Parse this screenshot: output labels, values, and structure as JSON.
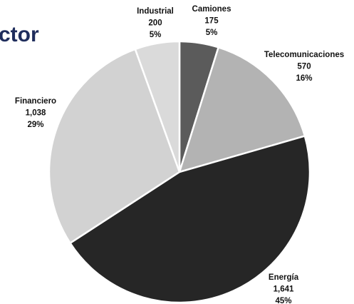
{
  "chart_data": {
    "type": "pie",
    "title": "ctor",
    "categories": [
      "Camiones",
      "Telecomunicaciones",
      "Energía",
      "Financiero",
      "Industrial"
    ],
    "values": [
      175,
      570,
      1641,
      1038,
      200
    ],
    "value_labels": [
      "175",
      "570",
      "1,641",
      "1,038",
      "200"
    ],
    "percent_labels": [
      "5%",
      "16%",
      "45%",
      "29%",
      "5%"
    ],
    "colors": [
      "#5b5b5b",
      "#b3b3b3",
      "#262626",
      "#d2d2d2",
      "#dadada"
    ]
  }
}
